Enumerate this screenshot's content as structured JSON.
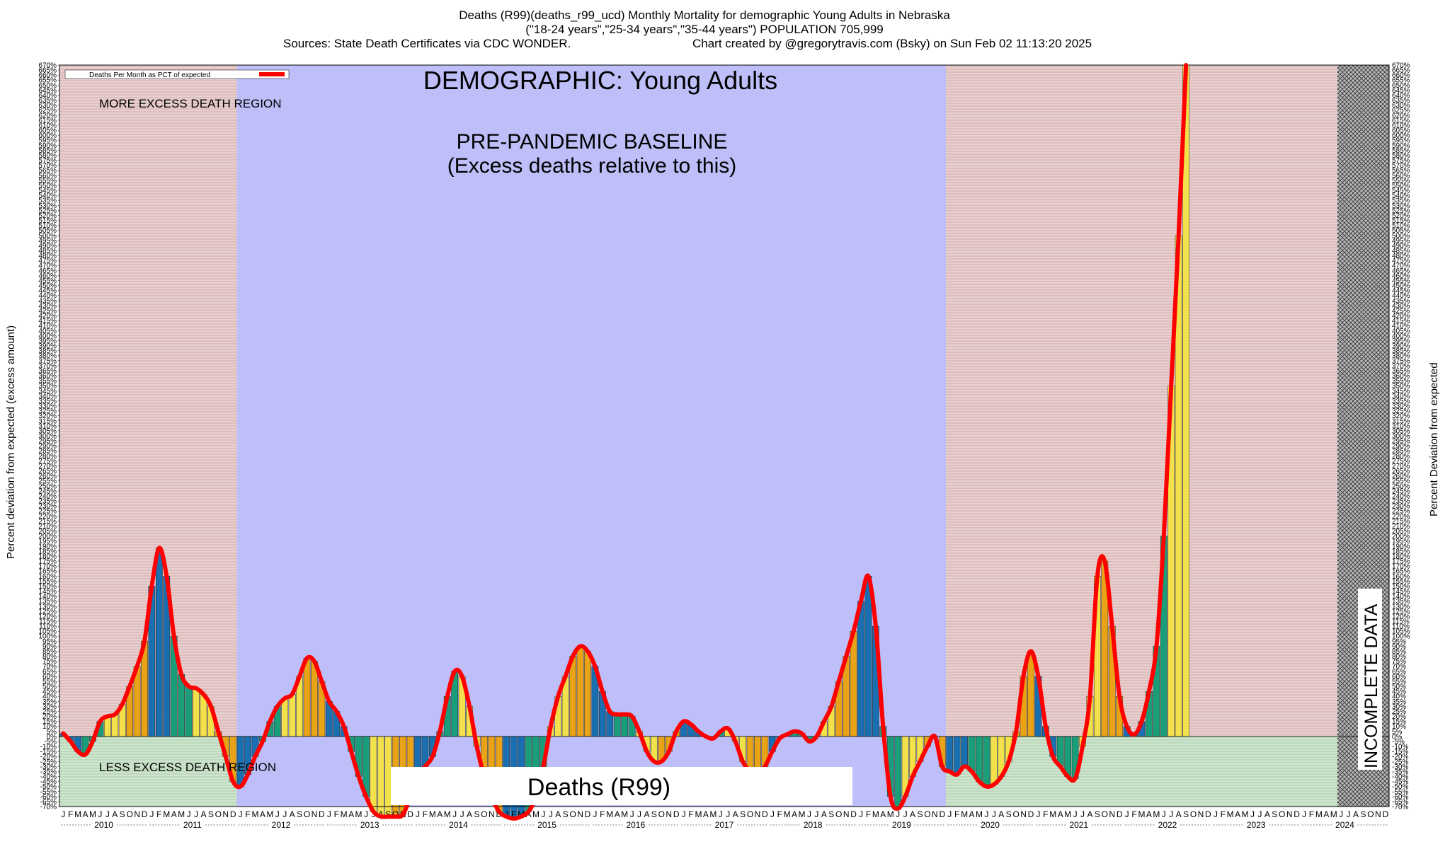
{
  "header": {
    "title": "Deaths (R99)(deaths_r99_ucd) Monthly Mortality for demographic Young Adults in Nebraska",
    "subtitle": "(\"18-24 years\",\"25-34 years\",\"35-44 years\") POPULATION 705,999",
    "sources": "Sources: State Death Certificates via CDC WONDER.",
    "credit": "Chart created by @gregorytravis.com (Bsky) on Sun Feb 02 11:13:20 2025"
  },
  "labels": {
    "demographic": "DEMOGRAPHIC: Young Adults",
    "baseline_line1": "PRE-PANDEMIC BASELINE",
    "baseline_line2": "(Excess deaths relative to this)",
    "more_region": "MORE EXCESS DEATH REGION",
    "less_region": "LESS EXCESS DEATH REGION",
    "incomplete": "INCOMPLETE DATA",
    "cause": "Deaths (R99)",
    "ylabel_left": "Percent deviation from expected (excess amount)",
    "ylabel_right": "Percent Deviation from expected",
    "legend": "Deaths Per Month as PCT of expected"
  },
  "colors": {
    "baseline_region": "#bebef9",
    "more_region": "#e2c6c6",
    "less_region": "#c9e2c9",
    "line": "#ff0000",
    "bar_colors": [
      "#1a6fb0",
      "#1a9e7a",
      "#f2e14a",
      "#e8a317"
    ]
  },
  "chart_data": {
    "type": "bar",
    "title": "Deaths (R99)(deaths_r99_ucd) Monthly Mortality for demographic Young Adults in Nebraska",
    "ylabel": "Percent deviation from expected (excess amount)",
    "ylim": [
      -70,
      670
    ],
    "ytick_step": 5,
    "month_labels": [
      "J",
      "F",
      "M",
      "A",
      "M",
      "J",
      "J",
      "A",
      "S",
      "O",
      "N",
      "D"
    ],
    "years": [
      "2010",
      "2011",
      "2012",
      "2013",
      "2014",
      "2015",
      "2016",
      "2017",
      "2018",
      "2019",
      "2020",
      "2021",
      "2022",
      "2023",
      "2024"
    ],
    "baseline_years": [
      "2012",
      "2013",
      "2014",
      "2015",
      "2016",
      "2017",
      "2018",
      "2019"
    ],
    "incomplete_from": "2024-06",
    "values": [
      3,
      -5,
      -15,
      -18,
      -5,
      15,
      20,
      22,
      32,
      50,
      70,
      95,
      150,
      188,
      160,
      100,
      62,
      50,
      48,
      42,
      30,
      5,
      -20,
      -45,
      -50,
      -38,
      -20,
      -5,
      15,
      30,
      38,
      42,
      60,
      78,
      75,
      55,
      35,
      25,
      10,
      -15,
      -40,
      -60,
      -75,
      -80,
      -80,
      -80,
      -78,
      -60,
      -40,
      -30,
      -20,
      5,
      40,
      65,
      60,
      30,
      -10,
      -40,
      -60,
      -75,
      -80,
      -82,
      -80,
      -75,
      -60,
      -30,
      10,
      40,
      60,
      80,
      90,
      85,
      70,
      45,
      25,
      22,
      22,
      20,
      5,
      -15,
      -25,
      -25,
      -15,
      5,
      15,
      12,
      5,
      0,
      -2,
      5,
      8,
      -5,
      -25,
      -35,
      -38,
      -30,
      -15,
      -2,
      2,
      5,
      3,
      -5,
      0,
      15,
      30,
      55,
      80,
      105,
      135,
      160,
      110,
      10,
      -60,
      -72,
      -60,
      -40,
      -25,
      -10,
      0,
      -30,
      -35,
      -38,
      -30,
      -35,
      -45,
      -50,
      -48,
      -40,
      -25,
      5,
      60,
      85,
      60,
      10,
      -20,
      -30,
      -40,
      -42,
      -10,
      40,
      160,
      175,
      110,
      40,
      10,
      2,
      15,
      45,
      90,
      200,
      350,
      500,
      670
    ],
    "series": [
      {
        "name": "Deaths Per Month as PCT of expected"
      }
    ]
  }
}
